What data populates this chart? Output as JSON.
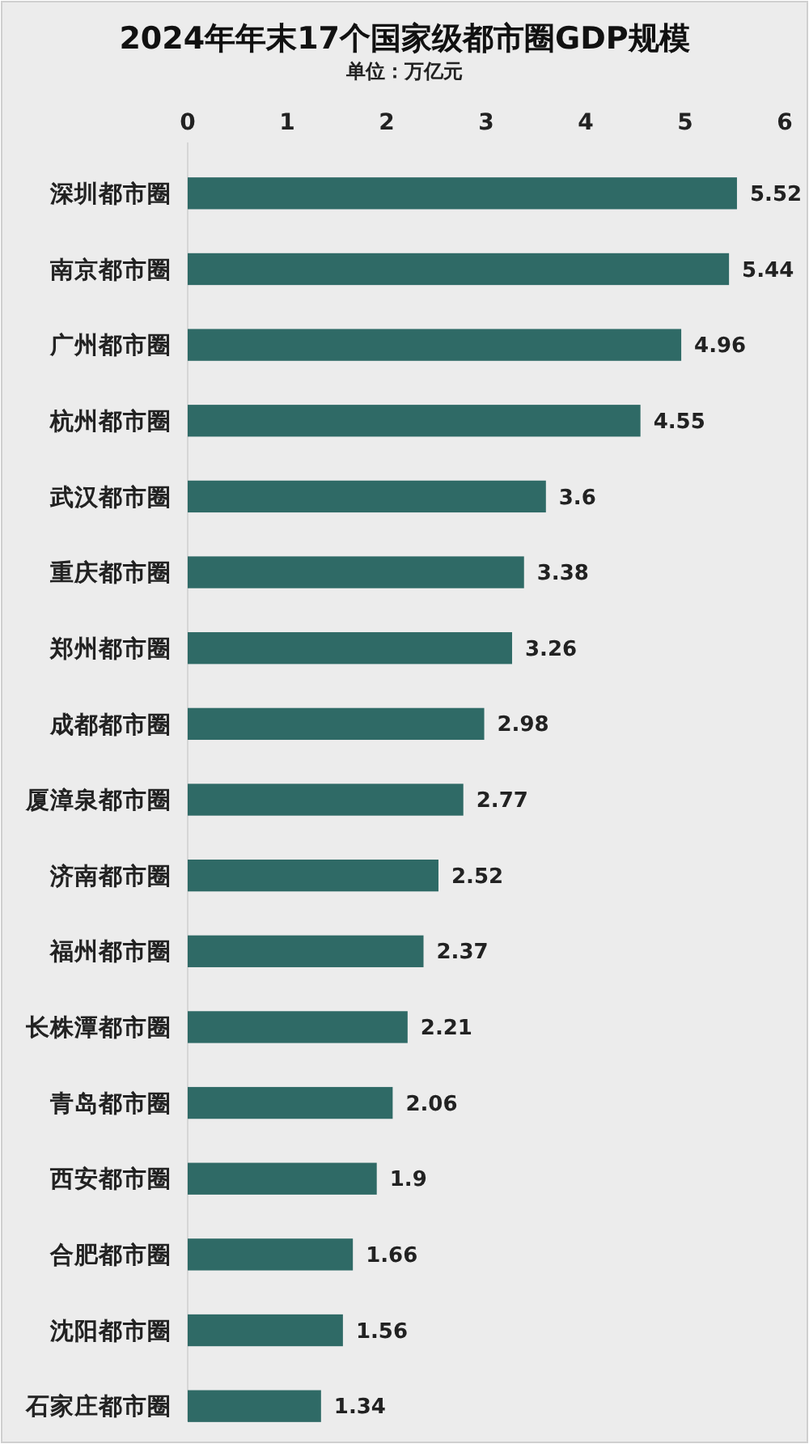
{
  "chart_data": {
    "type": "bar",
    "orientation": "horizontal",
    "title": "2024年年末17个国家级都市圈GDP规模",
    "subtitle": "单位：万亿元",
    "categories": [
      "深圳都市圈",
      "南京都市圈",
      "广州都市圈",
      "杭州都市圈",
      "武汉都市圈",
      "重庆都市圈",
      "郑州都市圈",
      "成都都市圈",
      "厦漳泉都市圈",
      "济南都市圈",
      "福州都市圈",
      "长株潭都市圈",
      "青岛都市圈",
      "西安都市圈",
      "合肥都市圈",
      "沈阳都市圈",
      "石家庄都市圈"
    ],
    "values": [
      5.52,
      5.44,
      4.96,
      4.55,
      3.6,
      3.38,
      3.26,
      2.98,
      2.77,
      2.52,
      2.37,
      2.21,
      2.06,
      1.9,
      1.66,
      1.56,
      1.34
    ],
    "color": "#2f6a66",
    "xlim": [
      0,
      6
    ],
    "xticks": [
      0,
      1,
      2,
      3,
      4,
      5,
      6
    ],
    "data_labels": true
  }
}
